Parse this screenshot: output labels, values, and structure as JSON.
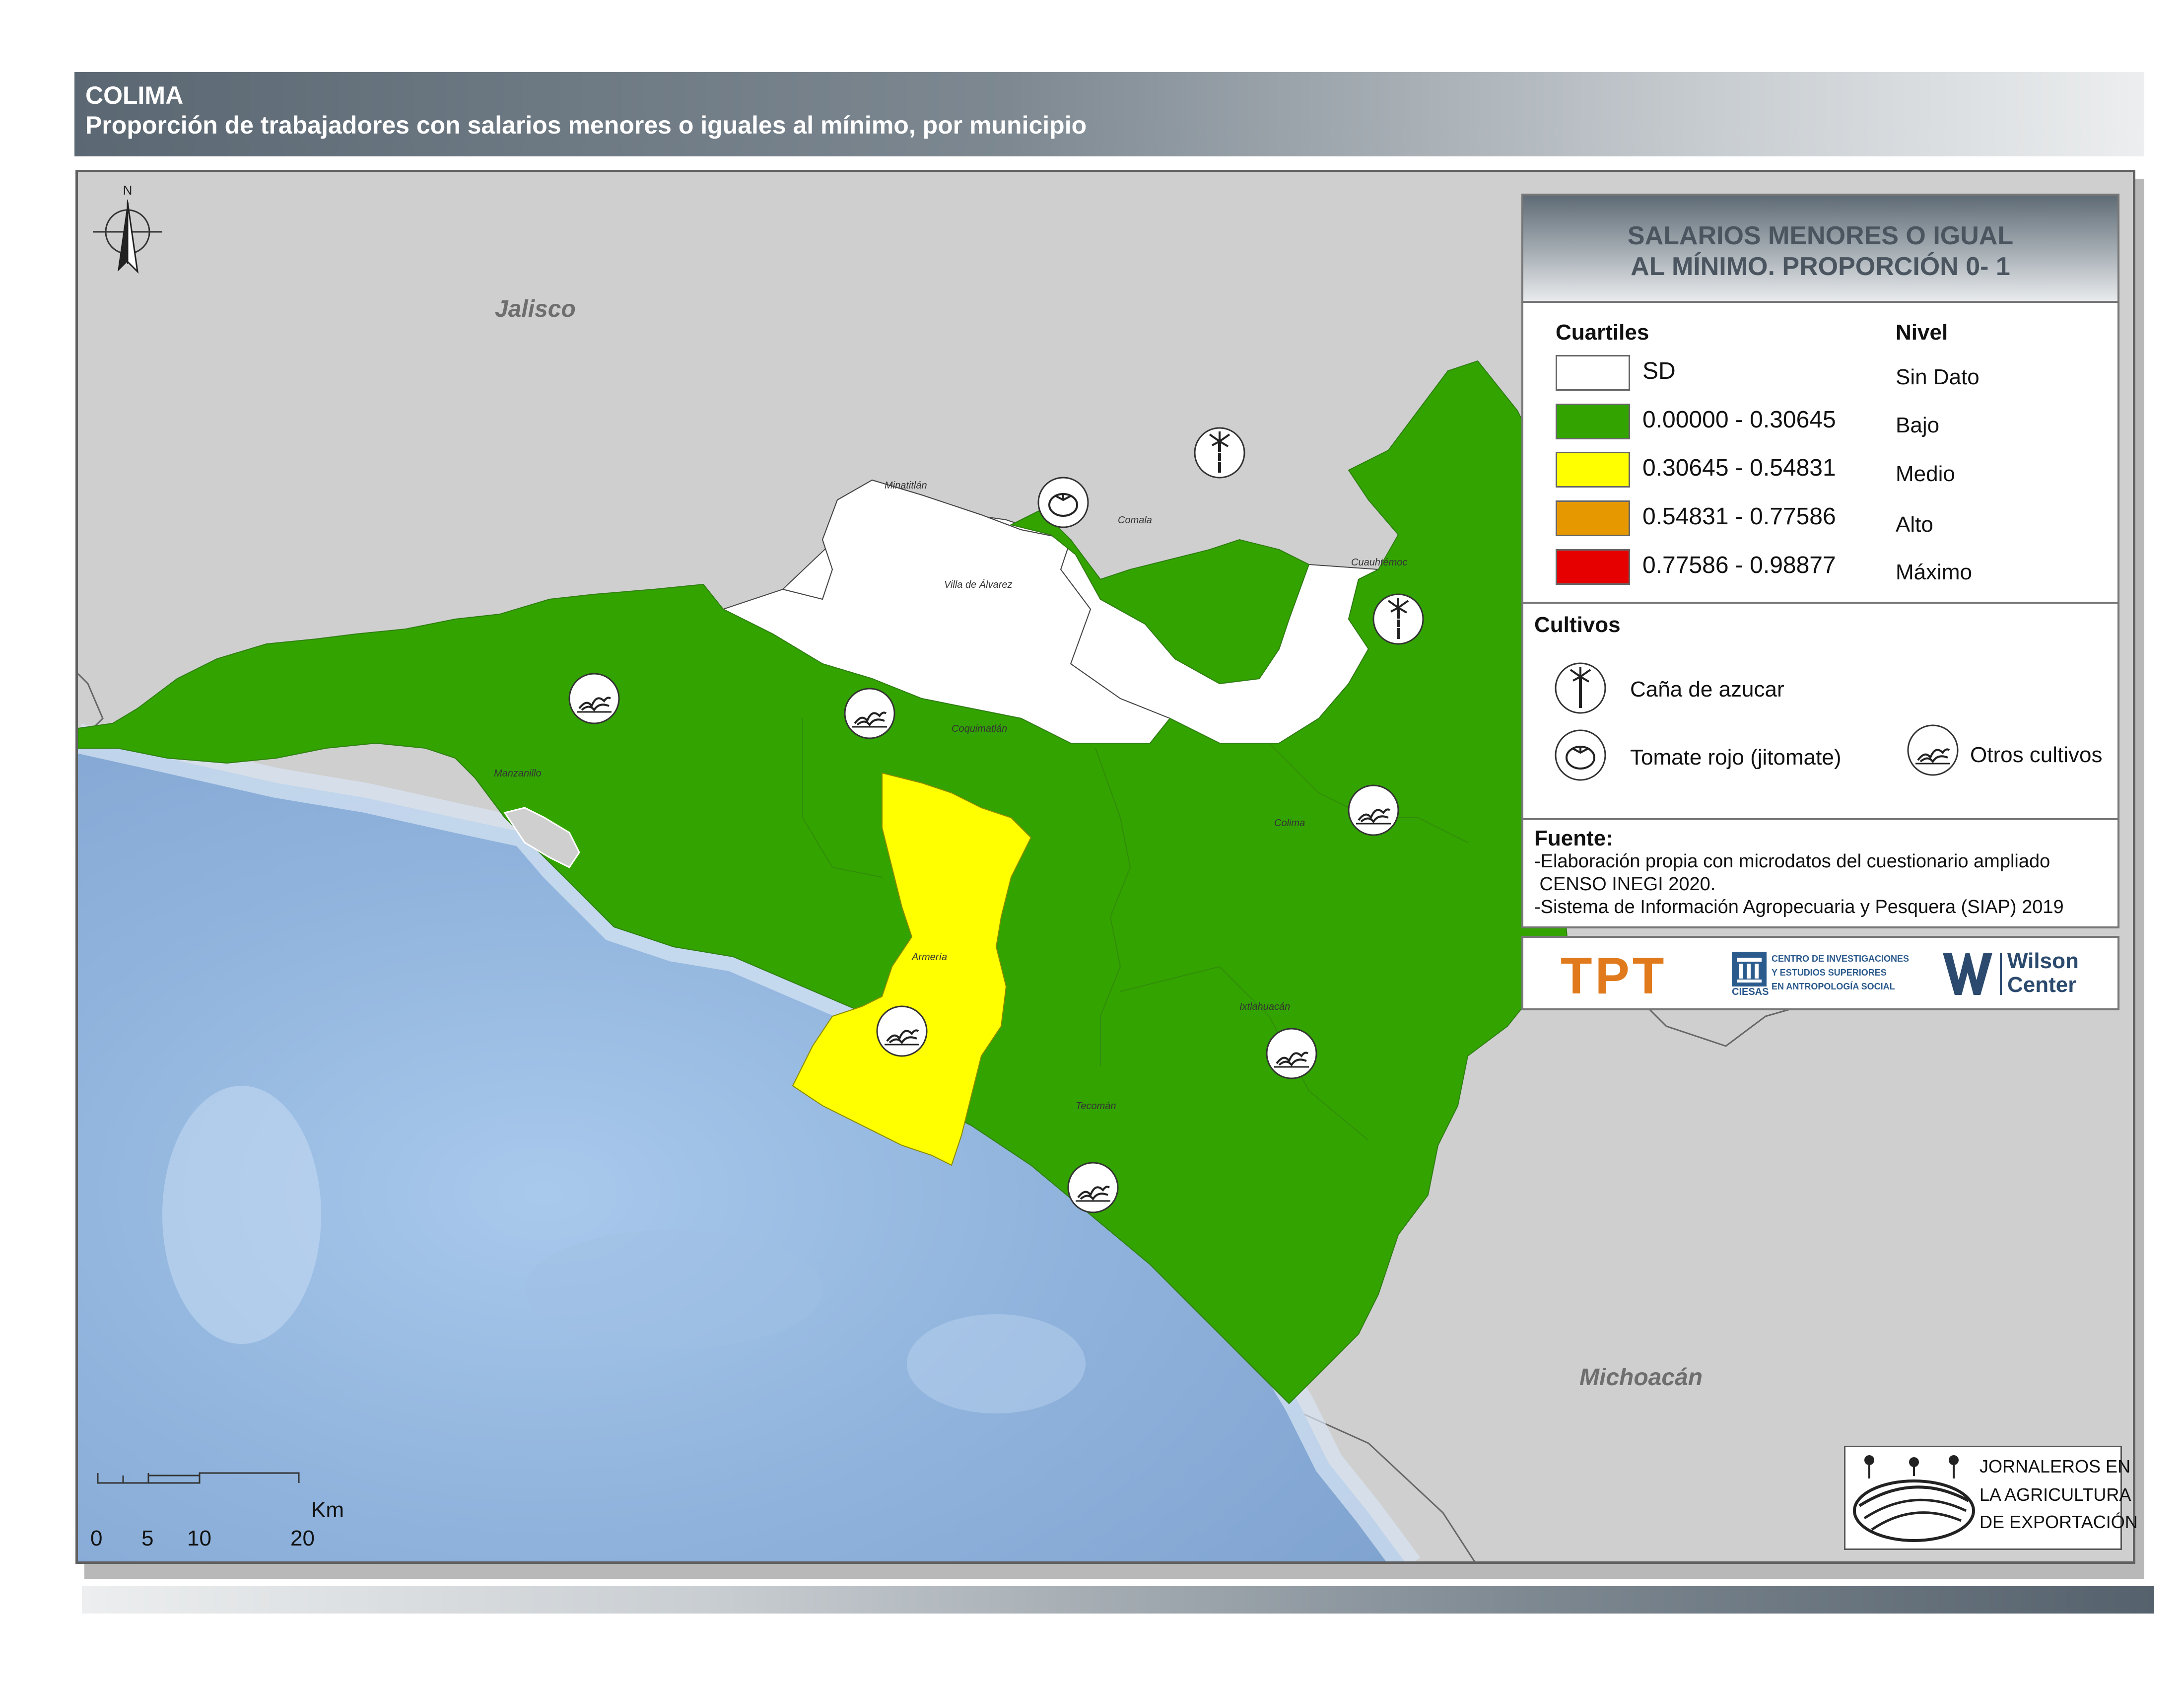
{
  "header": {
    "title": "COLIMA",
    "subtitle": "Proporción de trabajadores con salarios menores o iguales al mínimo, por municipio"
  },
  "map": {
    "north_label": "N",
    "states": [
      "Jalisco",
      "Michoacán"
    ],
    "municipalities": [
      {
        "name": "Minatitlán",
        "level": "Sin Dato",
        "crop": ""
      },
      {
        "name": "Villa de Álvarez",
        "level": "Sin Dato",
        "crop": ""
      },
      {
        "name": "Comala",
        "level": "Bajo",
        "crop": "Tomate rojo (jitomate)"
      },
      {
        "name": "Cuauhtémoc",
        "level": "Bajo",
        "crop": "Caña de azucar"
      },
      {
        "name": "Manzanillo",
        "level": "Bajo",
        "crop": "Otros cultivos"
      },
      {
        "name": "Coquimatlán",
        "level": "Bajo",
        "crop": "Otros cultivos"
      },
      {
        "name": "Colima",
        "level": "Bajo",
        "crop": "Otros cultivos"
      },
      {
        "name": "Armería",
        "level": "Medio",
        "crop": "Otros cultivos"
      },
      {
        "name": "Ixtlahuacán",
        "level": "Bajo",
        "crop": "Otros cultivos"
      },
      {
        "name": "Tecomán",
        "level": "Bajo",
        "crop": "Otros cultivos"
      }
    ],
    "scale": {
      "ticks": [
        "0",
        "5",
        "10",
        "20"
      ],
      "unit": "Km"
    }
  },
  "legend": {
    "title_line1": "SALARIOS MENORES O IGUAL",
    "title_line2": "AL MÍNIMO. PROPORCIÓN 0- 1",
    "col_cuartiles": "Cuartiles",
    "col_nivel": "Nivel",
    "classes": [
      {
        "range": "SD",
        "nivel": "Sin Dato",
        "color": "#ffffff"
      },
      {
        "range": "0.00000 - 0.30645",
        "nivel": "Bajo",
        "color": "#33a300"
      },
      {
        "range": "0.30645 - 0.54831",
        "nivel": "Medio",
        "color": "#ffff00"
      },
      {
        "range": "0.54831 - 0.77586",
        "nivel": "Alto",
        "color": "#e69800"
      },
      {
        "range": "0.77586 - 0.98877",
        "nivel": "Máximo",
        "color": "#e60000"
      }
    ],
    "cultivos_title": "Cultivos",
    "cultivos": {
      "cana": "Caña de azucar",
      "tomate": "Tomate rojo (jitomate)",
      "otros": "Otros cultivos"
    },
    "fuente_title": "Fuente:",
    "fuente_lines": [
      "-Elaboración propia con microdatos del cuestionario ampliado",
      " CENSO INEGI 2020.",
      "-Sistema de Información Agropecuaria y Pesquera (SIAP) 2019"
    ]
  },
  "logos": {
    "tpt": "TPT",
    "ciesas_lines": [
      "CENTRO DE INVESTIGACIONES",
      "Y ESTUDIOS SUPERIORES",
      "EN ANTROPOLOGÍA SOCIAL"
    ],
    "ciesas_acronym": "CIESAS",
    "wilson": [
      "Wilson",
      "Center"
    ],
    "jornaleros": [
      "JORNALEROS EN",
      "LA AGRICULTURA",
      "DE EXPORTACIÓN"
    ]
  }
}
